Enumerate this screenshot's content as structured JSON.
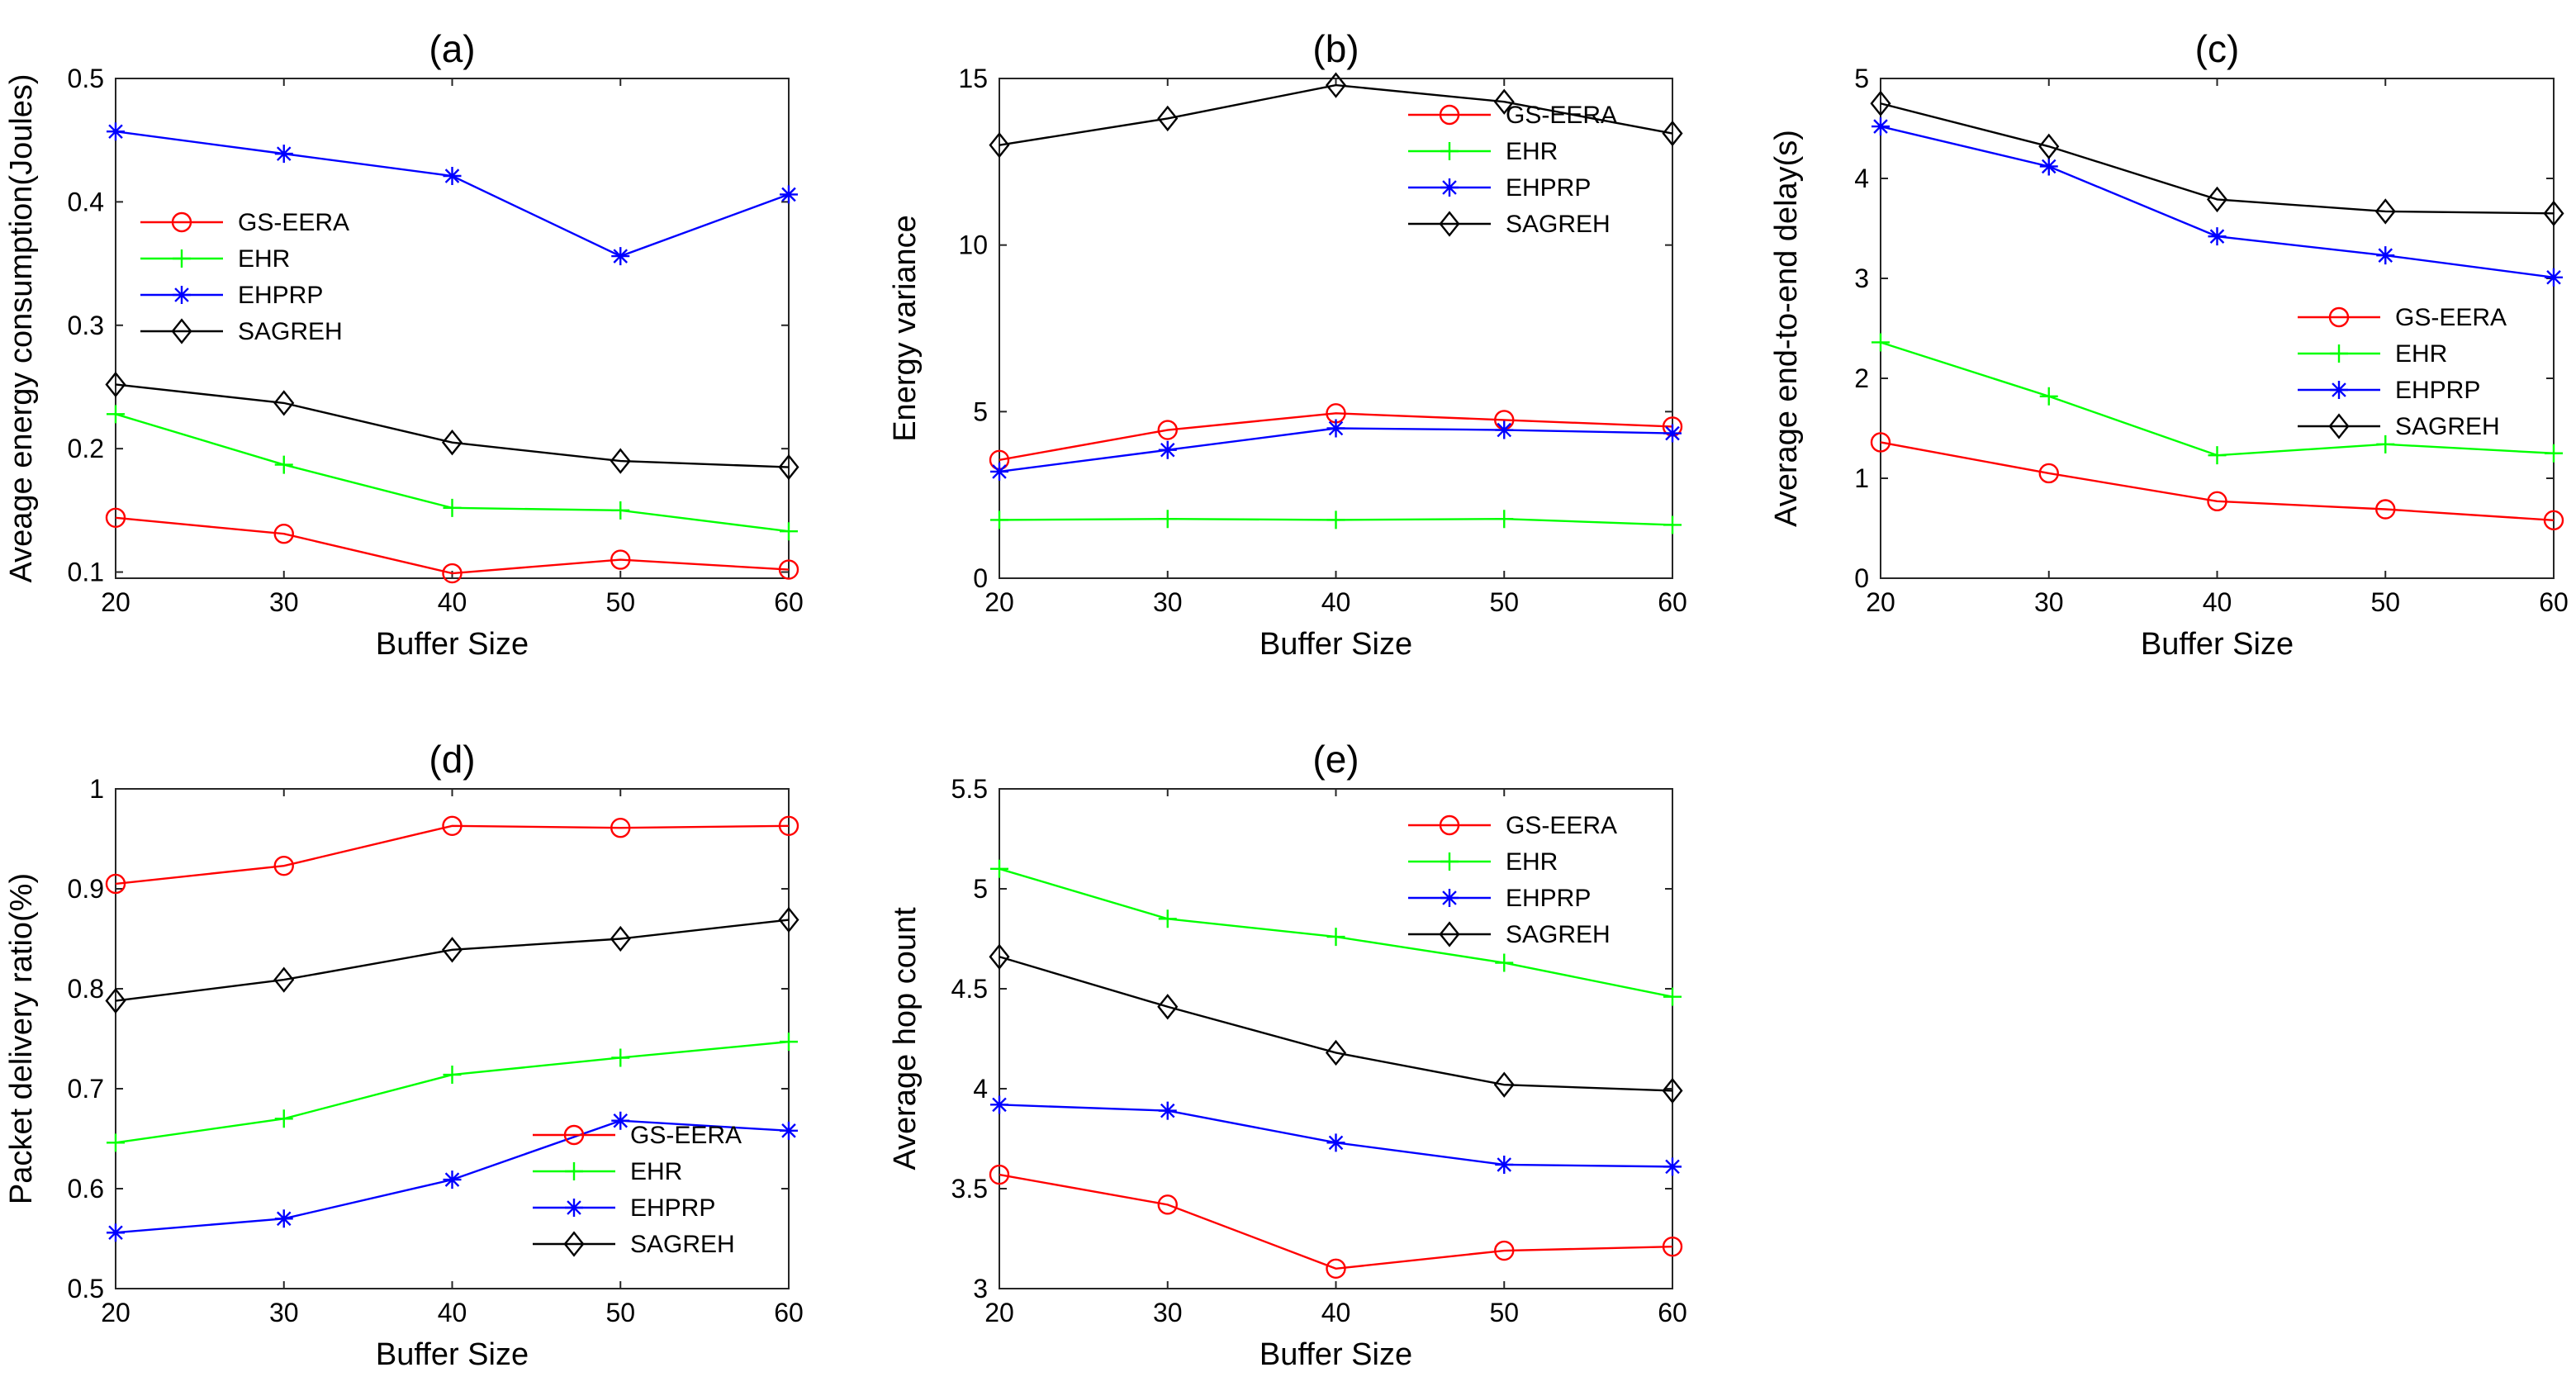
{
  "chart_data": [
    {
      "id": "a",
      "type": "line",
      "title": "(a)",
      "xlabel": "Buffer Size",
      "ylabel": "Aveage energy consumption(Joules)",
      "x": [
        20,
        30,
        40,
        50,
        60
      ],
      "xticks": [
        "20",
        "30",
        "40",
        "50",
        "60"
      ],
      "xlim": [
        20,
        60
      ],
      "ylim": [
        0.095,
        0.5
      ],
      "yticks": [
        0.1,
        0.2,
        0.3,
        0.4,
        0.5
      ],
      "ytick_labels": [
        "0.1",
        "0.2",
        "0.3",
        "0.4",
        "0.5"
      ],
      "legend_position": "middle-left",
      "series": [
        {
          "name": "GS-EERA",
          "color": "#ff0000",
          "marker": "circle",
          "values": [
            0.144,
            0.131,
            0.099,
            0.11,
            0.102
          ]
        },
        {
          "name": "EHR",
          "color": "#00ff00",
          "marker": "plus",
          "values": [
            0.228,
            0.187,
            0.152,
            0.15,
            0.133
          ]
        },
        {
          "name": "EHPRP",
          "color": "#0000ff",
          "marker": "asterisk",
          "values": [
            0.457,
            0.439,
            0.421,
            0.356,
            0.406
          ]
        },
        {
          "name": "SAGREH",
          "color": "#000000",
          "marker": "diamond",
          "values": [
            0.252,
            0.237,
            0.205,
            0.19,
            0.185
          ]
        }
      ]
    },
    {
      "id": "b",
      "type": "line",
      "title": "(b)",
      "xlabel": "Buffer Size",
      "ylabel": "Energy variance",
      "x": [
        20,
        30,
        40,
        50,
        60
      ],
      "xticks": [
        "20",
        "30",
        "40",
        "50",
        "60"
      ],
      "xlim": [
        20,
        60
      ],
      "ylim": [
        0,
        15
      ],
      "yticks": [
        0,
        5,
        10,
        15
      ],
      "ytick_labels": [
        "0",
        "5",
        "10",
        "15"
      ],
      "legend_position": "upper-right",
      "series": [
        {
          "name": "GS-EERA",
          "color": "#ff0000",
          "marker": "circle",
          "values": [
            3.55,
            4.45,
            4.95,
            4.75,
            4.55
          ]
        },
        {
          "name": "EHR",
          "color": "#00ff00",
          "marker": "plus",
          "values": [
            1.75,
            1.78,
            1.75,
            1.78,
            1.6
          ]
        },
        {
          "name": "EHPRP",
          "color": "#0000ff",
          "marker": "asterisk",
          "values": [
            3.2,
            3.85,
            4.5,
            4.45,
            4.35
          ]
        },
        {
          "name": "SAGREH",
          "color": "#000000",
          "marker": "diamond",
          "values": [
            13.0,
            13.8,
            14.8,
            14.3,
            13.35
          ]
        }
      ]
    },
    {
      "id": "c",
      "type": "line",
      "title": "(c)",
      "xlabel": "Buffer Size",
      "ylabel": "Average end-to-end delay(s)",
      "x": [
        20,
        30,
        40,
        50,
        60
      ],
      "xticks": [
        "20",
        "30",
        "40",
        "50",
        "60"
      ],
      "xlim": [
        20,
        60
      ],
      "ylim": [
        0,
        5
      ],
      "yticks": [
        0,
        1,
        2,
        3,
        4,
        5
      ],
      "ytick_labels": [
        "0",
        "1",
        "2",
        "3",
        "4",
        "5"
      ],
      "legend_position": "middle-right",
      "series": [
        {
          "name": "GS-EERA",
          "color": "#ff0000",
          "marker": "circle",
          "values": [
            1.36,
            1.05,
            0.77,
            0.69,
            0.58
          ]
        },
        {
          "name": "EHR",
          "color": "#00ff00",
          "marker": "plus",
          "values": [
            2.36,
            1.82,
            1.23,
            1.34,
            1.25
          ]
        },
        {
          "name": "EHPRP",
          "color": "#0000ff",
          "marker": "asterisk",
          "values": [
            4.52,
            4.12,
            3.42,
            3.23,
            3.01
          ]
        },
        {
          "name": "SAGREH",
          "color": "#000000",
          "marker": "diamond",
          "values": [
            4.75,
            4.32,
            3.79,
            3.67,
            3.65
          ]
        }
      ]
    },
    {
      "id": "d",
      "type": "line",
      "title": "(d)",
      "xlabel": "Buffer Size",
      "ylabel": "Packet delivery ratio(%)",
      "x": [
        20,
        30,
        40,
        50,
        60
      ],
      "xticks": [
        "20",
        "30",
        "40",
        "50",
        "60"
      ],
      "xlim": [
        20,
        60
      ],
      "ylim": [
        0.5,
        1
      ],
      "yticks": [
        0.5,
        0.6,
        0.7,
        0.8,
        0.9,
        1
      ],
      "ytick_labels": [
        "0.5",
        "0.6",
        "0.7",
        "0.8",
        "0.9",
        "1"
      ],
      "legend_position": "lower-right",
      "series": [
        {
          "name": "GS-EERA",
          "color": "#ff0000",
          "marker": "circle",
          "values": [
            0.905,
            0.923,
            0.963,
            0.961,
            0.963
          ]
        },
        {
          "name": "EHR",
          "color": "#00ff00",
          "marker": "plus",
          "values": [
            0.646,
            0.67,
            0.714,
            0.731,
            0.747
          ]
        },
        {
          "name": "EHPRP",
          "color": "#0000ff",
          "marker": "asterisk",
          "values": [
            0.556,
            0.57,
            0.609,
            0.668,
            0.658
          ]
        },
        {
          "name": "SAGREH",
          "color": "#000000",
          "marker": "diamond",
          "values": [
            0.788,
            0.809,
            0.839,
            0.85,
            0.869
          ]
        }
      ]
    },
    {
      "id": "e",
      "type": "line",
      "title": "(e)",
      "xlabel": "Buffer Size",
      "ylabel": "Average hop count",
      "x": [
        20,
        30,
        40,
        50,
        60
      ],
      "xticks": [
        "20",
        "30",
        "40",
        "50",
        "60"
      ],
      "xlim": [
        20,
        60
      ],
      "ylim": [
        3,
        5.5
      ],
      "yticks": [
        3,
        3.5,
        4,
        4.5,
        5,
        5.5
      ],
      "ytick_labels": [
        "3",
        "3.5",
        "4",
        "4.5",
        "5",
        "5.5"
      ],
      "legend_position": "upper-right",
      "series": [
        {
          "name": "GS-EERA",
          "color": "#ff0000",
          "marker": "circle",
          "values": [
            3.57,
            3.42,
            3.1,
            3.19,
            3.21
          ]
        },
        {
          "name": "EHR",
          "color": "#00ff00",
          "marker": "plus",
          "values": [
            5.1,
            4.85,
            4.76,
            4.63,
            4.46
          ]
        },
        {
          "name": "EHPRP",
          "color": "#0000ff",
          "marker": "asterisk",
          "values": [
            3.92,
            3.89,
            3.73,
            3.62,
            3.61
          ]
        },
        {
          "name": "SAGREH",
          "color": "#000000",
          "marker": "diamond",
          "values": [
            4.66,
            4.41,
            4.18,
            4.02,
            3.99
          ]
        }
      ]
    }
  ]
}
